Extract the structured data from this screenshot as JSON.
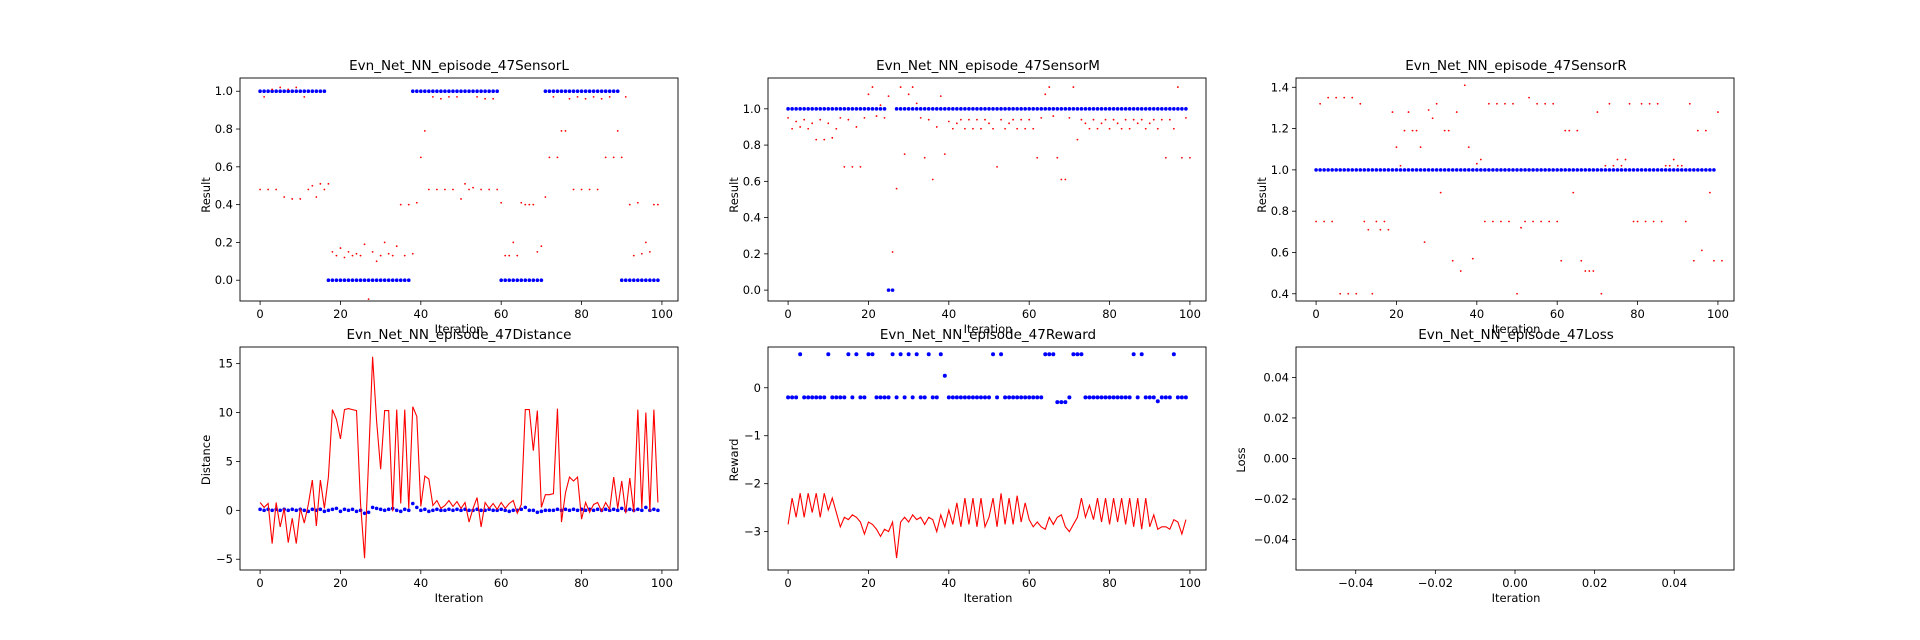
{
  "chart_data": [
    {
      "id": "sensorL",
      "type": "scatter",
      "title": "Evn_Net_NN_episode_47SensorL",
      "xlabel": "Iteration",
      "ylabel": "Result",
      "xlim": [
        -5,
        104
      ],
      "ylim": [
        -0.11,
        1.07
      ],
      "xticks": [
        0,
        20,
        40,
        60,
        80,
        100
      ],
      "yticks": [
        0.0,
        0.2,
        0.4,
        0.6,
        0.8,
        1.0
      ],
      "ytick_labels": [
        "0.0",
        "0.2",
        "0.4",
        "0.6",
        "0.8",
        "1.0"
      ],
      "series": [
        {
          "color": "#0000ff",
          "marker": "dot",
          "size": 1.8,
          "segments": [
            {
              "from": 0,
              "to": 16,
              "value": 1.0
            },
            {
              "from": 17,
              "to": 37,
              "value": 0.0
            },
            {
              "from": 38,
              "to": 59,
              "value": 1.0
            },
            {
              "from": 60,
              "to": 70,
              "value": 0.0
            },
            {
              "from": 71,
              "to": 89,
              "value": 1.0
            },
            {
              "from": 90,
              "to": 99,
              "value": 0.0
            }
          ]
        },
        {
          "color": "#ff0000",
          "marker": "dot",
          "size": 0.9,
          "values": [
            0.48,
            0.97,
            0.48,
            1.01,
            0.48,
            1.02,
            0.44,
            1.01,
            0.43,
            1.02,
            0.43,
            0.97,
            0.48,
            0.5,
            0.44,
            0.51,
            0.48,
            0.51,
            0.15,
            0.13,
            0.17,
            0.12,
            0.15,
            0.13,
            0.14,
            0.13,
            0.19,
            -0.1,
            0.15,
            0.1,
            0.13,
            0.2,
            0.14,
            0.13,
            0.18,
            0.4,
            0.13,
            0.4,
            0.14,
            0.41,
            0.65,
            0.79,
            0.48,
            0.97,
            0.48,
            0.96,
            0.48,
            0.97,
            0.48,
            0.97,
            0.43,
            0.51,
            0.48,
            0.49,
            0.97,
            0.48,
            0.96,
            0.48,
            0.96,
            0.48,
            0.41,
            0.13,
            0.13,
            0.2,
            0.13,
            0.41,
            0.4,
            0.4,
            0.4,
            0.15,
            0.18,
            0.44,
            0.65,
            0.97,
            0.65,
            0.79,
            0.79,
            0.96,
            0.48,
            0.97,
            0.48,
            0.96,
            0.48,
            0.97,
            0.48,
            0.96,
            0.65,
            0.97,
            0.65,
            0.79,
            0.65,
            0.97,
            0.4,
            0.13,
            0.41,
            0.14,
            0.2,
            0.15,
            0.4,
            0.4
          ]
        }
      ]
    },
    {
      "id": "sensorM",
      "type": "scatter",
      "title": "Evn_Net_NN_episode_47SensorM",
      "xlabel": "Iteration",
      "ylabel": "Result",
      "xlim": [
        -5,
        104
      ],
      "ylim": [
        -0.06,
        1.17
      ],
      "xticks": [
        0,
        20,
        40,
        60,
        80,
        100
      ],
      "yticks": [
        0.0,
        0.2,
        0.4,
        0.6,
        0.8,
        1.0
      ],
      "ytick_labels": [
        "0.0",
        "0.2",
        "0.4",
        "0.6",
        "0.8",
        "1.0"
      ],
      "series": [
        {
          "color": "#0000ff",
          "marker": "dot",
          "size": 1.8,
          "segments": [
            {
              "from": 0,
              "to": 24,
              "value": 1.0
            },
            {
              "from": 25,
              "to": 26,
              "value": 0.0
            },
            {
              "from": 27,
              "to": 99,
              "value": 1.0
            }
          ]
        },
        {
          "color": "#ff0000",
          "marker": "dot",
          "size": 0.9,
          "values": [
            0.95,
            0.89,
            0.93,
            0.9,
            0.94,
            0.89,
            0.92,
            0.83,
            0.94,
            0.83,
            0.92,
            0.84,
            0.89,
            0.95,
            0.68,
            0.94,
            0.68,
            0.9,
            0.68,
            0.95,
            1.08,
            1.12,
            0.96,
            1.02,
            0.95,
            1.07,
            0.21,
            0.56,
            1.12,
            0.75,
            1.08,
            1.12,
            1.03,
            0.95,
            0.73,
            0.94,
            0.61,
            0.9,
            1.07,
            0.75,
            0.93,
            0.89,
            0.92,
            0.94,
            0.89,
            0.94,
            0.89,
            0.94,
            0.89,
            0.94,
            0.92,
            0.89,
            0.68,
            0.94,
            0.89,
            0.92,
            0.94,
            0.89,
            0.94,
            0.89,
            0.94,
            0.89,
            0.73,
            0.95,
            1.08,
            1.12,
            0.96,
            0.73,
            0.61,
            0.61,
            0.95,
            1.12,
            0.83,
            0.94,
            0.92,
            0.89,
            0.94,
            0.89,
            0.92,
            0.94,
            0.89,
            0.94,
            0.92,
            0.89,
            0.94,
            0.89,
            0.94,
            0.92,
            0.94,
            0.89,
            0.92,
            0.94,
            0.89,
            0.94,
            0.73,
            0.94,
            0.89,
            1.12,
            0.73,
            0.95,
            0.73
          ]
        }
      ]
    },
    {
      "id": "sensorR",
      "type": "scatter",
      "title": "Evn_Net_NN_episode_47SensorR",
      "xlabel": "Iteration",
      "ylabel": "Result",
      "xlim": [
        -5,
        104
      ],
      "ylim": [
        0.365,
        1.445
      ],
      "xticks": [
        0,
        20,
        40,
        60,
        80,
        100
      ],
      "yticks": [
        0.4,
        0.6,
        0.8,
        1.0,
        1.2,
        1.4
      ],
      "ytick_labels": [
        "0.4",
        "0.6",
        "0.8",
        "1.0",
        "1.2",
        "1.4"
      ],
      "series": [
        {
          "color": "#0000ff",
          "marker": "dot",
          "size": 1.8,
          "segments": [
            {
              "from": 0,
              "to": 99,
              "value": 1.0
            }
          ]
        },
        {
          "color": "#ff0000",
          "marker": "dot",
          "size": 0.9,
          "values": [
            0.75,
            1.32,
            0.75,
            1.35,
            0.75,
            1.35,
            0.4,
            1.35,
            0.4,
            1.35,
            0.4,
            1.32,
            0.75,
            0.71,
            0.4,
            0.75,
            0.71,
            0.75,
            0.71,
            1.28,
            1.11,
            1.02,
            1.19,
            1.28,
            1.19,
            1.19,
            1.11,
            0.65,
            1.29,
            1.25,
            1.32,
            0.89,
            1.19,
            1.19,
            0.56,
            1.28,
            0.51,
            1.41,
            1.11,
            0.57,
            1.03,
            1.05,
            0.75,
            1.32,
            0.75,
            1.32,
            0.75,
            1.32,
            0.75,
            1.32,
            0.4,
            0.72,
            0.75,
            1.35,
            0.75,
            1.32,
            0.75,
            1.32,
            0.75,
            1.32,
            0.75,
            0.56,
            1.19,
            1.19,
            0.89,
            1.19,
            0.56,
            0.51,
            0.51,
            0.51,
            1.28,
            0.4,
            1.02,
            1.32,
            1.02,
            1.05,
            1.02,
            1.05,
            1.32,
            0.75,
            0.75,
            1.32,
            0.75,
            1.32,
            0.75,
            1.32,
            0.75,
            1.02,
            1.02,
            1.05,
            1.02,
            1.02,
            0.75,
            1.32,
            0.56,
            1.19,
            0.61,
            1.19,
            0.89,
            0.56,
            1.28,
            0.56
          ]
        }
      ]
    },
    {
      "id": "distance",
      "type": "line",
      "title": "Evn_Net_NN_episode_47Distance",
      "xlabel": "Iteration",
      "ylabel": "Distance",
      "xlim": [
        -5,
        104
      ],
      "ylim": [
        -6.1,
        16.7
      ],
      "xticks": [
        0,
        20,
        40,
        60,
        80,
        100
      ],
      "yticks": [
        -5,
        0,
        5,
        10,
        15
      ],
      "ytick_labels": [
        "−5",
        "0",
        "5",
        "10",
        "15"
      ],
      "series": [
        {
          "color": "#0000ff",
          "marker": "dot",
          "size": 1.8,
          "values": [
            0.1,
            0.0,
            0.1,
            0.0,
            0.1,
            0.0,
            0.1,
            0.0,
            0.1,
            0.0,
            0.1,
            0.0,
            -0.1,
            0.1,
            0.0,
            0.1,
            -0.1,
            0.0,
            0.1,
            0.2,
            -0.1,
            0.1,
            0.0,
            0.1,
            -0.1,
            0.0,
            -0.3,
            -0.2,
            0.3,
            0.2,
            0.1,
            0.0,
            0.1,
            0.2,
            0.0,
            -0.1,
            0.1,
            0.0,
            0.7,
            0.3,
            0.0,
            0.1,
            -0.1,
            0.0,
            0.1,
            0.0,
            0.0,
            0.1,
            0.0,
            0.1,
            0.0,
            0.1,
            0.0,
            0.0,
            0.1,
            0.0,
            0.0,
            0.1,
            0.0,
            0.0,
            0.1,
            0.0,
            -0.1,
            0.0,
            0.0,
            0.1,
            0.3,
            0.0,
            0.0,
            -0.2,
            -0.1,
            0.0,
            0.0,
            0.0,
            0.1,
            0.0,
            0.1,
            0.0,
            0.1,
            0.0,
            0.1,
            0.0,
            0.1,
            0.0,
            0.1,
            0.0,
            0.1,
            0.0,
            0.1,
            0.0,
            0.2,
            0.0,
            0.1,
            0.0,
            0.1,
            0.0,
            0.3,
            0.0,
            0.1,
            0.0
          ]
        },
        {
          "color": "#ff0000",
          "marker": "line",
          "values": [
            0.8,
            0.3,
            0.7,
            -3.4,
            0.8,
            -1.7,
            0.2,
            -3.3,
            -0.8,
            -3.4,
            0.2,
            -1.3,
            0.6,
            3.1,
            -1.6,
            3.1,
            0.2,
            3.4,
            10.3,
            9.3,
            7.3,
            10.3,
            10.4,
            10.3,
            10.2,
            0.7,
            -4.9,
            5.1,
            15.7,
            9.1,
            4.2,
            10.2,
            10.2,
            -0.1,
            10.3,
            0.7,
            10.3,
            0.2,
            10.6,
            9.6,
            0.4,
            3.5,
            3.2,
            0.5,
            1.0,
            0.2,
            0.5,
            1.0,
            0.4,
            0.9,
            0.2,
            0.8,
            -1.2,
            0.2,
            1.3,
            -1.7,
            0.8,
            0.2,
            0.7,
            0.1,
            0.8,
            0.2,
            0.7,
            1.0,
            -0.3,
            0.6,
            10.3,
            10.3,
            6.1,
            10.2,
            0.3,
            1.6,
            1.6,
            1.7,
            10.4,
            -1.2,
            1.8,
            3.4,
            3.0,
            3.4,
            -0.9,
            0.8,
            -0.2,
            0.6,
            0.8,
            -0.1,
            0.8,
            0.1,
            3.4,
            0.2,
            3.0,
            -0.3,
            3.3,
            -0.2,
            10.3,
            0.2,
            10.0,
            -0.1,
            10.3,
            0.8
          ]
        }
      ]
    },
    {
      "id": "reward",
      "type": "line",
      "title": "Evn_Net_NN_episode_47Reward",
      "xlabel": "Iteration",
      "ylabel": "Reward",
      "xlim": [
        -5,
        104
      ],
      "ylim": [
        -3.8,
        0.85
      ],
      "xticks": [
        0,
        20,
        40,
        60,
        80,
        100
      ],
      "yticks": [
        -3,
        -2,
        -1,
        0
      ],
      "ytick_labels": [
        "−3",
        "−2",
        "−1",
        "0"
      ],
      "series": [
        {
          "color": "#0000ff",
          "marker": "dot",
          "size": 2.0,
          "highs": [
            3,
            10,
            15,
            17,
            20,
            21,
            26,
            28,
            30,
            32,
            35,
            38,
            51,
            53,
            64,
            65,
            66,
            71,
            72,
            73,
            86,
            88,
            96
          ],
          "special": [
            [
              39,
              0.25
            ],
            [
              67,
              -0.3
            ],
            [
              68,
              -0.3
            ],
            [
              69,
              -0.3
            ],
            [
              92,
              -0.28
            ]
          ],
          "high_value": 0.7,
          "low_value": -0.2
        },
        {
          "color": "#ff0000",
          "marker": "line",
          "values": [
            -2.85,
            -2.3,
            -2.7,
            -2.2,
            -2.7,
            -2.2,
            -2.6,
            -2.2,
            -2.7,
            -2.2,
            -2.55,
            -2.3,
            -2.6,
            -2.9,
            -2.7,
            -2.75,
            -2.65,
            -2.7,
            -2.8,
            -3.05,
            -2.8,
            -2.85,
            -2.95,
            -3.1,
            -2.95,
            -3.0,
            -2.8,
            -3.55,
            -2.8,
            -2.7,
            -2.8,
            -2.65,
            -2.75,
            -2.7,
            -2.85,
            -2.7,
            -2.75,
            -3.0,
            -2.65,
            -2.9,
            -2.55,
            -2.85,
            -2.4,
            -2.9,
            -2.3,
            -2.85,
            -2.3,
            -2.9,
            -2.3,
            -2.9,
            -2.7,
            -2.3,
            -2.9,
            -2.2,
            -2.85,
            -2.3,
            -2.85,
            -2.25,
            -2.8,
            -2.4,
            -2.75,
            -2.9,
            -2.8,
            -2.9,
            -2.95,
            -2.7,
            -2.85,
            -2.7,
            -2.65,
            -2.9,
            -3.0,
            -2.85,
            -2.7,
            -2.3,
            -2.7,
            -2.45,
            -2.75,
            -2.3,
            -2.8,
            -2.3,
            -2.85,
            -2.3,
            -2.8,
            -2.3,
            -2.85,
            -2.3,
            -2.9,
            -2.3,
            -2.95,
            -2.3,
            -2.9,
            -2.65,
            -2.95,
            -2.9,
            -2.9,
            -2.95,
            -2.75,
            -2.8,
            -3.05,
            -2.75
          ]
        }
      ]
    },
    {
      "id": "loss",
      "type": "line",
      "title": "Evn_Net_NN_episode_47Loss",
      "xlabel": "Iteration",
      "ylabel": "Loss",
      "xlim": [
        -0.055,
        0.055
      ],
      "ylim": [
        -0.055,
        0.055
      ],
      "xticks": [
        -0.04,
        -0.02,
        0.0,
        0.02,
        0.04
      ],
      "xtick_labels": [
        "−0.04",
        "−0.02",
        "0.00",
        "0.02",
        "0.04"
      ],
      "yticks": [
        -0.04,
        -0.02,
        0.0,
        0.02,
        0.04
      ],
      "ytick_labels": [
        "−0.04",
        "−0.02",
        "0.00",
        "0.02",
        "0.04"
      ],
      "series": []
    }
  ]
}
